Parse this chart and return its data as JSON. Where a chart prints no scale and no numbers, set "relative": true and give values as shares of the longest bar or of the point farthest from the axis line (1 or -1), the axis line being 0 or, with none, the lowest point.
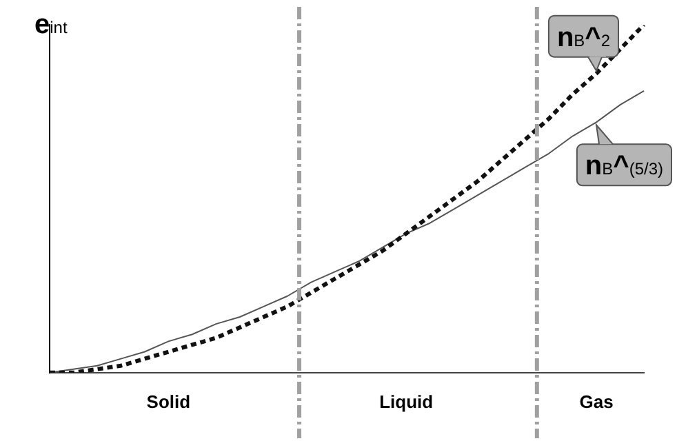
{
  "chart_data": {
    "type": "line",
    "relative": true,
    "ylabel": "e$_{int}$",
    "tick_labels": "x",
    "grid": false,
    "marker": "none",
    "categories": [
      null,
      null,
      null,
      null,
      null,
      "Solid",
      null,
      null,
      null,
      null,
      null,
      null,
      null,
      null,
      null,
      "Liquid",
      null,
      null,
      null,
      null,
      null,
      null,
      null,
      "Gas",
      null,
      null
    ],
    "series": [
      {
        "name": "n$_{B}$^2",
        "color": "#111111",
        "line_style": "dotted",
        "values": [
          0,
          0,
          0.01,
          0.02,
          0.04,
          0.06,
          0.08,
          0.1,
          0.13,
          0.16,
          0.19,
          0.23,
          0.27,
          0.31,
          0.35,
          0.4,
          0.45,
          0.5,
          0.55,
          0.61,
          0.67,
          0.73,
          0.8,
          0.86,
          0.93,
          1
        ]
      },
      {
        "name": "n$_{B}$^(5/3)",
        "color": "#555555",
        "line_style": "solid",
        "values": [
          0,
          0.01,
          0.02,
          0.04,
          0.06,
          0.09,
          0.11,
          0.14,
          0.16,
          0.19,
          0.22,
          0.26,
          0.29,
          0.32,
          0.36,
          0.4,
          0.43,
          0.47,
          0.51,
          0.55,
          0.59,
          0.63,
          0.68,
          0.72,
          0.77,
          0.81
        ]
      }
    ]
  }
}
